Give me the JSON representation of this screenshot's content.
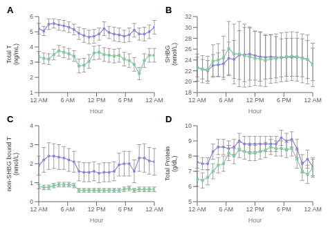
{
  "chart_data": [
    {
      "type": "line",
      "title": "A",
      "xlabel": "Hour",
      "ylabel": "Total T\n(ng/mL)",
      "xlim": [
        0,
        24
      ],
      "xticks": [
        {
          "value": 0,
          "label": "12 AM"
        },
        {
          "value": 6,
          "label": "6 AM"
        },
        {
          "value": 12,
          "label": "12 PM"
        },
        {
          "value": 18,
          "label": "6 PM"
        },
        {
          "value": 24,
          "label": "12 AM"
        }
      ],
      "ylim": [
        1,
        6
      ],
      "yticks": [
        1,
        2,
        3,
        4,
        5,
        6
      ],
      "grid": false,
      "x": [
        0,
        1.0435,
        2.087,
        3.1304,
        4.1739,
        5.2174,
        6.2609,
        7.3043,
        8.3478,
        9.3913,
        10.4348,
        11.4783,
        12.5217,
        13.5652,
        14.6087,
        15.6522,
        16.6957,
        17.7391,
        18.7826,
        19.8261,
        20.8696,
        21.913,
        22.9565,
        24
      ],
      "series": [
        {
          "marker": "circle",
          "values": [
            5.2,
            5.05,
            5.5,
            5.55,
            5.45,
            5.4,
            5.3,
            5.15,
            4.9,
            4.75,
            4.65,
            4.7,
            4.85,
            5.2,
            4.95,
            4.85,
            4.8,
            4.7,
            4.8,
            5.1,
            4.85,
            4.85,
            5.0,
            5.3
          ],
          "errors": [
            0.35,
            0.3,
            0.35,
            0.3,
            0.35,
            0.35,
            0.35,
            0.35,
            0.4,
            0.45,
            0.45,
            0.45,
            0.4,
            0.45,
            0.4,
            0.45,
            0.45,
            0.4,
            0.45,
            0.45,
            0.4,
            0.45,
            0.45,
            0.45
          ]
        },
        {
          "marker": "square",
          "values": [
            3.35,
            3.25,
            3.2,
            3.5,
            3.75,
            3.65,
            3.55,
            3.4,
            2.75,
            2.8,
            3.05,
            3.6,
            3.65,
            3.5,
            3.45,
            3.4,
            3.45,
            3.2,
            3.1,
            2.85,
            2.25,
            3.1,
            3.45,
            3.45
          ],
          "errors": [
            0.35,
            0.35,
            0.35,
            0.35,
            0.35,
            0.35,
            0.35,
            0.35,
            0.45,
            0.45,
            0.45,
            0.45,
            0.45,
            0.45,
            0.45,
            0.45,
            0.45,
            0.45,
            0.45,
            0.45,
            0.4,
            0.45,
            0.45,
            0.45
          ]
        }
      ]
    },
    {
      "type": "line",
      "title": "B",
      "xlabel": "Hour",
      "ylabel": "SHBG\n(nmol/L)",
      "xlim": [
        0,
        24
      ],
      "xticks": [
        {
          "value": 0,
          "label": "12 AM"
        },
        {
          "value": 6,
          "label": "6 AM"
        },
        {
          "value": 12,
          "label": "12 PM"
        },
        {
          "value": 18,
          "label": "6 PM"
        },
        {
          "value": 24,
          "label": "12 AM"
        }
      ],
      "ylim": [
        18,
        32
      ],
      "yticks": [
        18,
        20,
        22,
        24,
        26,
        28,
        30,
        32
      ],
      "grid": false,
      "x": [
        0,
        1.0909,
        2.1818,
        3.2727,
        4.3636,
        5.4545,
        6.5455,
        7.6364,
        8.7273,
        9.8182,
        10.9091,
        12,
        13.0909,
        14.1818,
        15.2727,
        16.3636,
        17.4545,
        18.5455,
        19.6364,
        20.7273,
        21.8182,
        22.9091,
        24
      ],
      "series": [
        {
          "marker": "circle",
          "values": [
            22.7,
            22.3,
            22.0,
            23.0,
            23.1,
            23.3,
            24.3,
            24.1,
            24.9,
            25.0,
            25.1,
            24.8,
            24.6,
            24.5,
            24.6,
            24.5,
            24.4,
            24.5,
            24.5,
            24.5,
            24.4,
            24.1,
            23.2
          ],
          "errors": [
            1.8,
            1.8,
            1.9,
            2.0,
            2.2,
            2.5,
            3.0,
            3.5,
            4.5,
            5.0,
            4.8,
            4.5,
            4.5,
            4.0,
            4.0,
            3.8,
            3.5,
            3.5,
            3.5,
            3.5,
            3.5,
            3.5,
            3.0
          ]
        },
        {
          "marker": "square",
          "values": [
            22.6,
            22.3,
            22.2,
            23.8,
            24.0,
            24.4,
            26.1,
            25.1,
            25.1,
            24.8,
            24.6,
            24.3,
            24.2,
            23.9,
            24.2,
            24.3,
            24.5,
            24.6,
            24.7,
            24.6,
            24.3,
            24.1,
            23.1
          ],
          "errors": [
            2.5,
            2.5,
            2.5,
            3.0,
            3.0,
            4.0,
            5.0,
            5.5,
            6.0,
            5.8,
            5.5,
            5.0,
            5.0,
            4.8,
            4.5,
            4.5,
            4.5,
            4.5,
            4.5,
            4.5,
            4.5,
            4.5,
            4.0
          ]
        }
      ]
    },
    {
      "type": "line",
      "title": "C",
      "xlabel": "Hour",
      "ylabel": "non-SHBG bound T\n(nmol/L)",
      "xlim": [
        0,
        24
      ],
      "xticks": [
        {
          "value": 0,
          "label": "12 AM"
        },
        {
          "value": 6,
          "label": "6 AM"
        },
        {
          "value": 12,
          "label": "12 PM"
        },
        {
          "value": 18,
          "label": "6 PM"
        },
        {
          "value": 24,
          "label": "12 AM"
        }
      ],
      "ylim": [
        0,
        4
      ],
      "yticks": [
        0,
        1,
        2,
        3,
        4
      ],
      "grid": false,
      "x": [
        0,
        1.0435,
        2.087,
        3.1304,
        4.1739,
        5.2174,
        6.2609,
        7.3043,
        8.3478,
        9.3913,
        10.4348,
        11.4783,
        12.5217,
        13.5652,
        14.6087,
        15.6522,
        16.6957,
        17.7391,
        18.7826,
        19.8261,
        20.8696,
        21.913,
        22.9565,
        24
      ],
      "series": [
        {
          "marker": "circle",
          "values": [
            1.9,
            2.2,
            2.4,
            2.4,
            2.35,
            2.3,
            2.2,
            2.1,
            1.6,
            1.55,
            1.55,
            1.6,
            1.5,
            1.55,
            1.55,
            1.6,
            1.95,
            2.0,
            2.0,
            1.6,
            2.3,
            2.3,
            2.15,
            2.1
          ],
          "errors": [
            0.5,
            0.65,
            0.7,
            0.65,
            0.65,
            0.6,
            0.6,
            0.55,
            0.5,
            0.5,
            0.5,
            0.5,
            0.5,
            0.5,
            0.5,
            0.5,
            0.6,
            0.65,
            0.65,
            0.6,
            0.7,
            0.75,
            0.7,
            0.7
          ]
        },
        {
          "marker": "square",
          "values": [
            0.8,
            0.75,
            0.75,
            0.85,
            0.9,
            0.9,
            0.9,
            0.85,
            0.6,
            0.6,
            0.6,
            0.6,
            0.6,
            0.6,
            0.6,
            0.6,
            0.6,
            0.65,
            0.7,
            0.6,
            0.65,
            0.65,
            0.65,
            0.65
          ],
          "errors": [
            0.12,
            0.12,
            0.12,
            0.12,
            0.12,
            0.12,
            0.12,
            0.12,
            0.1,
            0.1,
            0.1,
            0.1,
            0.1,
            0.1,
            0.1,
            0.1,
            0.1,
            0.12,
            0.12,
            0.1,
            0.12,
            0.12,
            0.12,
            0.12
          ]
        }
      ]
    },
    {
      "type": "line",
      "title": "D",
      "xlabel": "Hour",
      "ylabel": "Total Protein\n(g/dL)",
      "xlim": [
        0,
        24
      ],
      "xticks": [
        {
          "value": 0,
          "label": "12 AM"
        },
        {
          "value": 6,
          "label": "6 AM"
        },
        {
          "value": 12,
          "label": "12 PM"
        },
        {
          "value": 18,
          "label": "6 PM"
        },
        {
          "value": 24,
          "label": "12 AM"
        }
      ],
      "ylim": [
        5,
        10
      ],
      "yticks": [
        5,
        6,
        7,
        8,
        9,
        10
      ],
      "grid": false,
      "x": [
        0,
        1.0909,
        2.1818,
        3.2727,
        4.3636,
        5.4545,
        6.5455,
        7.6364,
        8.7273,
        9.8182,
        10.9091,
        12,
        13.0909,
        14.1818,
        15.2727,
        16.3636,
        17.4545,
        18.5455,
        19.6364,
        20.7273,
        21.8182,
        22.9091,
        24
      ],
      "series": [
        {
          "marker": "circle",
          "values": [
            7.6,
            7.5,
            7.5,
            8.3,
            8.6,
            8.6,
            8.5,
            8.6,
            9.0,
            8.8,
            8.8,
            8.8,
            8.8,
            8.8,
            8.8,
            8.8,
            9.2,
            9.0,
            9.1,
            8.5,
            7.5,
            7.8,
            7.3
          ],
          "errors": [
            0.4,
            0.4,
            0.4,
            0.5,
            0.5,
            0.5,
            0.5,
            0.5,
            0.5,
            0.5,
            0.5,
            0.5,
            0.5,
            0.5,
            0.5,
            0.5,
            0.5,
            0.5,
            0.5,
            0.6,
            0.6,
            0.6,
            0.6
          ]
        },
        {
          "marker": "square",
          "values": [
            6.5,
            6.4,
            6.6,
            7.0,
            7.4,
            7.5,
            8.2,
            8.0,
            8.4,
            8.3,
            8.2,
            8.2,
            8.3,
            8.4,
            8.6,
            8.5,
            8.5,
            8.4,
            8.5,
            7.8,
            7.0,
            6.8,
            7.2
          ],
          "errors": [
            0.5,
            0.5,
            0.5,
            0.5,
            0.5,
            0.5,
            0.5,
            0.5,
            0.5,
            0.5,
            0.5,
            0.5,
            0.5,
            0.5,
            0.5,
            0.5,
            0.5,
            0.5,
            0.5,
            0.6,
            0.6,
            0.6,
            0.6
          ]
        }
      ]
    }
  ]
}
